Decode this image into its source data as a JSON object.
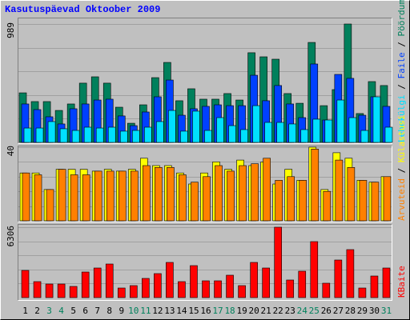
{
  "title": "Kasutuspäevad Oktoober 2009",
  "chart_data": [
    {
      "type": "bar",
      "ylim": [
        0,
        989
      ],
      "yticks": [
        989
      ],
      "legend_separator": " / ",
      "series": [
        {
          "name": "Pöördumisi",
          "color": "#00805c",
          "values": [
            414,
            341,
            341,
            267,
            321,
            495,
            548,
            495,
            294,
            160,
            314,
            541,
            668,
            348,
            448,
            361,
            361,
            408,
            354,
            749,
            715,
            695,
            408,
            327,
            835,
            307,
            441,
            989,
            241,
            508,
            475
          ]
        },
        {
          "name": "Faile",
          "color": "#0040ff",
          "values": [
            321,
            274,
            214,
            154,
            281,
            321,
            354,
            361,
            221,
            140,
            254,
            381,
            521,
            227,
            281,
            301,
            314,
            307,
            307,
            561,
            348,
            475,
            321,
            207,
            655,
            187,
            568,
            535,
            227,
            381,
            301
          ]
        },
        {
          "name": "Lehekülgi",
          "color": "#00e0ff",
          "values": [
            120,
            120,
            174,
            114,
            100,
            127,
            120,
            127,
            94,
            100,
            127,
            174,
            267,
            94,
            261,
            100,
            207,
            140,
            107,
            307,
            167,
            167,
            154,
            107,
            194,
            187,
            354,
            207,
            100,
            381,
            127
          ]
        }
      ]
    },
    {
      "type": "bar",
      "ylim": [
        0,
        40
      ],
      "yticks": [
        40
      ],
      "legend_separator": " / ",
      "series": [
        {
          "name": "Külastusi",
          "color": "#ffff00",
          "values": [
            26,
            26,
            17,
            28,
            28,
            28,
            27,
            28,
            27,
            28,
            34,
            30,
            30,
            26,
            20,
            26,
            32,
            28,
            33,
            30,
            32,
            20,
            28,
            22,
            40,
            17,
            37,
            34,
            22,
            21,
            24
          ]
        },
        {
          "name": "Arvuteid",
          "color": "#ff8000",
          "values": [
            26,
            25,
            17,
            28,
            25,
            25,
            27,
            27,
            27,
            27,
            30,
            29,
            29,
            25,
            21,
            24,
            30,
            27,
            30,
            31,
            34,
            22,
            24,
            22,
            39,
            16,
            33,
            29,
            22,
            21,
            24
          ]
        }
      ]
    },
    {
      "type": "bar",
      "ylim": [
        0,
        6306
      ],
      "yticks": [
        6306
      ],
      "categories": [
        "1",
        "2",
        "3",
        "4",
        "5",
        "6",
        "7",
        "8",
        "9",
        "10",
        "11",
        "12",
        "13",
        "14",
        "15",
        "16",
        "17",
        "18",
        "19",
        "20",
        "21",
        "22",
        "23",
        "24",
        "25",
        "26",
        "27",
        "28",
        "29",
        "30",
        "31"
      ],
      "category_colors": [
        "#000000",
        "#000000",
        "#00805c",
        "#00805c",
        "#000000",
        "#000000",
        "#000000",
        "#000000",
        "#000000",
        "#00805c",
        "#00805c",
        "#000000",
        "#000000",
        "#000000",
        "#000000",
        "#000000",
        "#00805c",
        "#00805c",
        "#000000",
        "#000000",
        "#000000",
        "#000000",
        "#000000",
        "#00805c",
        "#00805c",
        "#000000",
        "#000000",
        "#000000",
        "#000000",
        "#000000",
        "#00805c"
      ],
      "series": [
        {
          "name": "KBaite",
          "color": "#ff0000",
          "values": [
            2437,
            1433,
            1218,
            1218,
            1003,
            2293,
            2652,
            3010,
            860,
            1075,
            1720,
            2150,
            3153,
            1433,
            2866,
            1505,
            1505,
            2007,
            1075,
            3153,
            2652,
            6306,
            1577,
            2365,
            5016,
            1290,
            3368,
            4300,
            860,
            1935,
            2652
          ]
        }
      ]
    }
  ]
}
